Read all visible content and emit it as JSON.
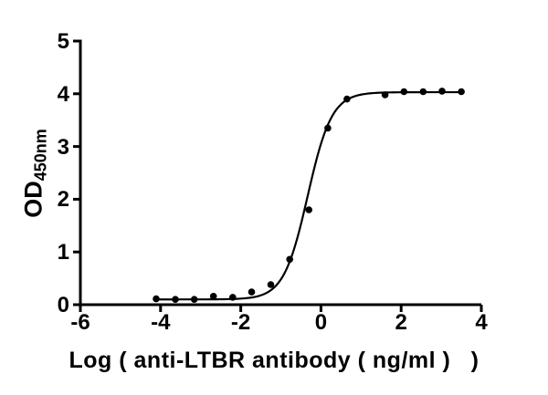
{
  "figure": {
    "background": "#ffffff",
    "foreground": "#000000"
  },
  "chart_data": {
    "type": "scatter",
    "title": "",
    "xlabel": "Log ( anti-LTBR antibody ( ng/ml ) )",
    "xlabel_display": "Log ( anti-LTBR antibody ( ng/ml )   )",
    "ylabel": "OD450nm",
    "ylabel_main": "OD",
    "ylabel_sub": "450nm",
    "xlim": [
      -6,
      4
    ],
    "ylim": [
      0,
      5
    ],
    "xticks": [
      "-6",
      "-4",
      "-2",
      "0",
      "2",
      "4"
    ],
    "yticks": [
      "0",
      "1",
      "2",
      "3",
      "4",
      "5"
    ],
    "grid": false,
    "legend": "none",
    "axis_color": "#000000",
    "marker_color": "#000000",
    "curve_color": "#000000",
    "series": [
      {
        "name": "anti-LTBR antibody",
        "marker": "circle",
        "points": [
          [
            -4.11,
            0.11
          ],
          [
            -3.63,
            0.1
          ],
          [
            -3.16,
            0.1
          ],
          [
            -2.68,
            0.16
          ],
          [
            -2.2,
            0.14
          ],
          [
            -1.73,
            0.24
          ],
          [
            -1.25,
            0.38
          ],
          [
            -0.78,
            0.86
          ],
          [
            -0.3,
            1.8
          ],
          [
            0.17,
            3.35
          ],
          [
            0.65,
            3.9
          ],
          [
            1.6,
            3.98
          ],
          [
            2.07,
            4.04
          ],
          [
            2.55,
            4.04
          ],
          [
            3.02,
            4.05
          ],
          [
            3.5,
            4.04
          ]
        ]
      }
    ],
    "fit_curve": {
      "model": "4PL",
      "bottom": 0.1,
      "top": 4.03,
      "log_ec50": -0.33,
      "hill": 1.45,
      "x_start": -4.11,
      "x_end": 3.5
    }
  }
}
